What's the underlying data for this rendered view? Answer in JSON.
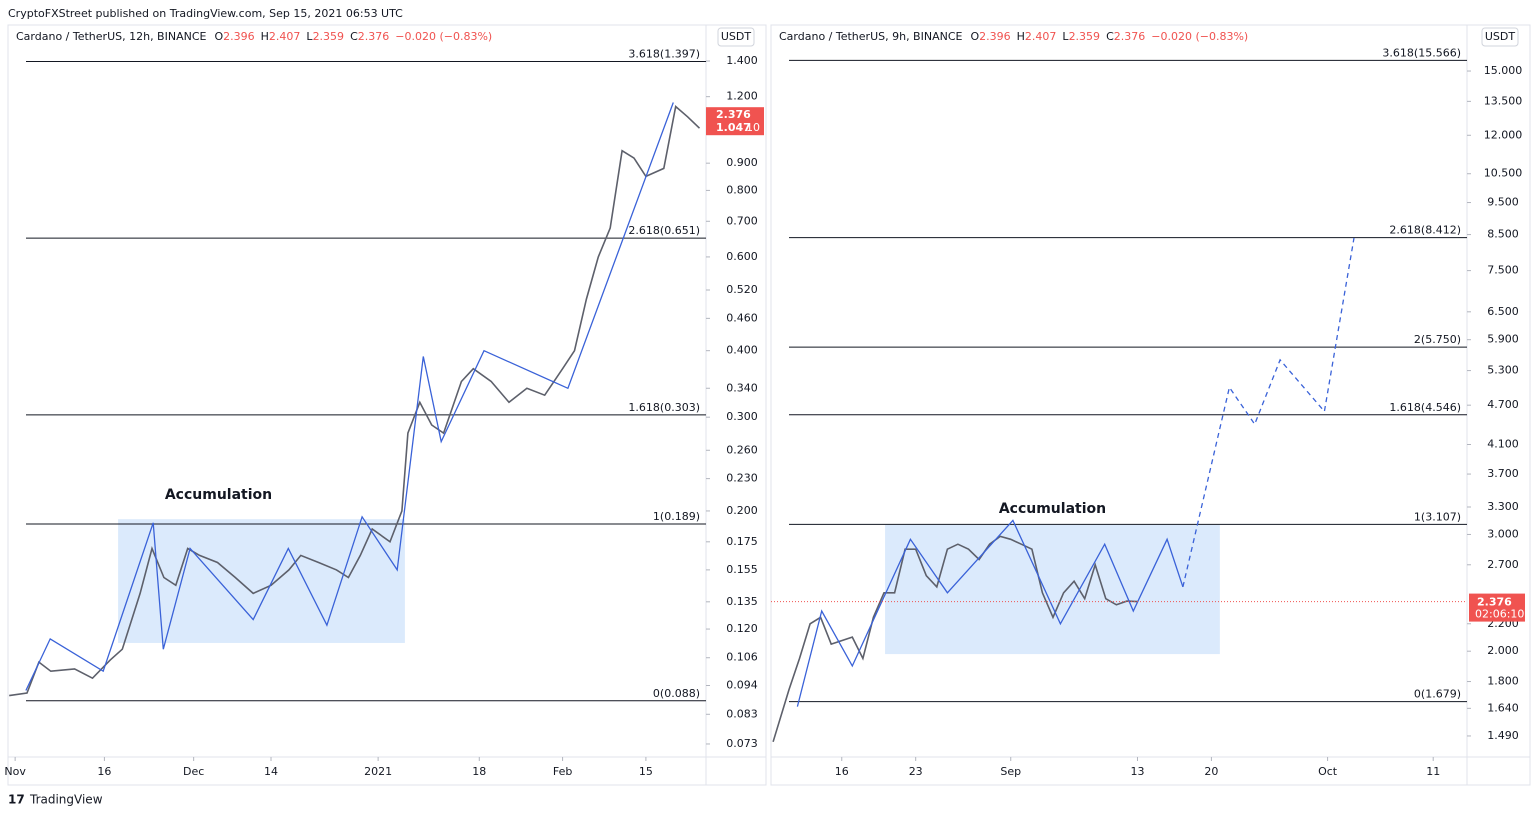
{
  "header": {
    "published": "CryptoFXStreet published on TradingView.com, Sep 15, 2021 06:53 UTC"
  },
  "footer": {
    "brand": "TradingView"
  },
  "chart_data": [
    {
      "type": "line",
      "title": "Cardano / TetherUS, 12h, BINANCE",
      "ohlc": [
        {
          "key": "O",
          "value": 2.396
        },
        {
          "key": "H",
          "value": 2.407
        },
        {
          "key": "L",
          "value": 2.359
        },
        {
          "key": "C",
          "value": 2.376
        }
      ],
      "change": "−0.020 (−0.83%)",
      "currency": "USDT",
      "log_scale": true,
      "color": "#5d606b",
      "x": [
        -1,
        2,
        4,
        6,
        10,
        13,
        16,
        18,
        21,
        23,
        25,
        27,
        29,
        31,
        34,
        37,
        40,
        43,
        46,
        48,
        51,
        54,
        56,
        58,
        60,
        63,
        65,
        66,
        68,
        70,
        72,
        75,
        77,
        80,
        83,
        86,
        89,
        92,
        94,
        96,
        98,
        100,
        102,
        104,
        106,
        109,
        111,
        113,
        115
      ],
      "values": [
        0.09,
        0.091,
        0.104,
        0.1,
        0.101,
        0.097,
        0.105,
        0.11,
        0.14,
        0.17,
        0.15,
        0.145,
        0.17,
        0.165,
        0.16,
        0.15,
        0.14,
        0.145,
        0.155,
        0.165,
        0.16,
        0.155,
        0.15,
        0.165,
        0.185,
        0.175,
        0.2,
        0.28,
        0.32,
        0.29,
        0.28,
        0.35,
        0.37,
        0.35,
        0.32,
        0.34,
        0.33,
        0.37,
        0.4,
        0.5,
        0.6,
        0.68,
        0.95,
        0.92,
        0.85,
        0.88,
        1.15,
        1.1,
        1.047
      ],
      "waves": [
        {
          "color": "#3a62d8",
          "dashed": false,
          "x": [
            1.8,
            5.9,
            14.8,
            23.2,
            24.9,
            29.4,
            40,
            45.9,
            52.4,
            58.3,
            64.2,
            68.6,
            71.6,
            78.8,
            92.9,
            110.6
          ],
          "values": [
            0.092,
            0.115,
            0.1,
            0.19,
            0.11,
            0.17,
            0.125,
            0.17,
            0.122,
            0.195,
            0.155,
            0.39,
            0.27,
            0.4,
            0.34,
            1.17
          ]
        }
      ],
      "levels": [
        {
          "label": "3.618(1.397)",
          "value": 1.397
        },
        {
          "label": "2.618(0.651)",
          "value": 0.651
        },
        {
          "label": "1.618(0.303)",
          "value": 0.303
        },
        {
          "label": "1(0.189)",
          "value": 0.189
        },
        {
          "label": "0(0.088)",
          "value": 0.088
        }
      ],
      "box": {
        "text": "Accumulation",
        "x": [
          17.3,
          65.5
        ],
        "values": [
          0.193,
          0.113
        ],
        "color": "#dbeafc"
      },
      "price_tag": {
        "price": 2.376,
        "secondary": 1.047,
        "timer": "10",
        "color": "#f05350"
      },
      "xlim": [
        -1.2,
        116.1
      ],
      "ylim": [
        0.069,
        1.636
      ],
      "xticks": [
        {
          "value": 0,
          "label": "Nov"
        },
        {
          "value": 15,
          "label": "16"
        },
        {
          "value": 30,
          "label": "Dec"
        },
        {
          "value": 43,
          "label": "14"
        },
        {
          "value": 61,
          "label": "2021"
        },
        {
          "value": 78,
          "label": "18"
        },
        {
          "value": 92,
          "label": "Feb"
        },
        {
          "value": 106,
          "label": "15"
        }
      ],
      "yticks": [
        {
          "value": 1.4,
          "label": "1.400"
        },
        {
          "value": 1.2,
          "label": "1.200"
        },
        {
          "value": 0.9,
          "label": "0.900"
        },
        {
          "value": 0.8,
          "label": "0.800"
        },
        {
          "value": 0.7,
          "label": "0.700"
        },
        {
          "value": 0.6,
          "label": "0.600"
        },
        {
          "value": 0.52,
          "label": "0.520"
        },
        {
          "value": 0.46,
          "label": "0.460"
        },
        {
          "value": 0.4,
          "label": "0.400"
        },
        {
          "value": 0.34,
          "label": "0.340"
        },
        {
          "value": 0.3,
          "label": "0.300"
        },
        {
          "value": 0.26,
          "label": "0.260"
        },
        {
          "value": 0.23,
          "label": "0.230"
        },
        {
          "value": 0.2,
          "label": "0.200"
        },
        0.175,
        0.155,
        0.135,
        {
          "value": 0.12,
          "label": "0.120"
        },
        0.106,
        0.094,
        0.083,
        0.073
      ]
    },
    {
      "type": "line",
      "title": "Cardano / TetherUS, 9h, BINANCE",
      "ohlc": [
        {
          "key": "O",
          "value": 2.396
        },
        {
          "key": "H",
          "value": 2.407
        },
        {
          "key": "L",
          "value": 2.359
        },
        {
          "key": "C",
          "value": 2.376
        }
      ],
      "change": "−0.020 (−0.83%)",
      "currency": "USDT",
      "log_scale": true,
      "color": "#5d606b",
      "x": [
        9.5,
        11,
        12,
        13,
        14,
        15,
        17,
        18,
        19,
        20,
        21,
        22,
        23,
        24,
        25,
        26,
        27,
        28,
        29,
        30,
        31,
        32,
        33,
        34,
        35,
        36,
        37,
        38,
        39,
        40,
        41,
        42,
        43,
        44
      ],
      "values": [
        1.46,
        1.75,
        1.95,
        2.2,
        2.25,
        2.05,
        2.1,
        1.95,
        2.25,
        2.45,
        2.45,
        2.85,
        2.85,
        2.6,
        2.5,
        2.85,
        2.9,
        2.85,
        2.75,
        2.9,
        2.98,
        2.95,
        2.9,
        2.85,
        2.45,
        2.25,
        2.45,
        2.55,
        2.4,
        2.7,
        2.4,
        2.35,
        2.38,
        2.376
      ],
      "waves": [
        {
          "color": "#3a62d8",
          "dashed": false,
          "x": [
            11.8,
            14.1,
            17,
            22.5,
            26,
            32.2,
            36.7,
            40.9,
            43.6,
            46.8,
            48.3
          ],
          "values": [
            1.65,
            2.3,
            1.9,
            2.95,
            2.45,
            3.15,
            2.2,
            2.9,
            2.3,
            2.95,
            2.5
          ]
        },
        {
          "color": "#3a62d8",
          "dashed": true,
          "x": [
            48.3,
            52.7,
            55.1,
            57.5,
            61.7,
            64.5
          ],
          "values": [
            2.5,
            5.0,
            4.4,
            5.5,
            4.6,
            8.4
          ]
        }
      ],
      "levels": [
        {
          "label": "3.618(15.566)",
          "value": 15.566
        },
        {
          "label": "2.618(8.412)",
          "value": 8.412
        },
        {
          "label": "2(5.750)",
          "value": 5.75
        },
        {
          "label": "1.618(4.546)",
          "value": 4.546
        },
        {
          "label": "1(3.107)",
          "value": 3.107
        },
        {
          "label": "0(1.679)",
          "value": 1.679
        }
      ],
      "box": {
        "text": "Accumulation",
        "x": [
          20.1,
          51.8
        ],
        "values": [
          3.1,
          1.98
        ],
        "color": "#dbeafc"
      },
      "price_tag": {
        "price": 2.376,
        "timer": "02:06:10",
        "color": "#f05350"
      },
      "xlim": [
        9.3,
        75.2
      ],
      "ylim": [
        1.385,
        17.6
      ],
      "xticks": [
        {
          "value": 16,
          "label": "16"
        },
        {
          "value": 23,
          "label": "23"
        },
        {
          "value": 32,
          "label": "Sep"
        },
        {
          "value": 44,
          "label": "13"
        },
        {
          "value": 51,
          "label": "20"
        },
        {
          "value": 62,
          "label": "Oct"
        },
        {
          "value": 72,
          "label": "11"
        }
      ],
      "yticks": [
        {
          "value": 15,
          "label": "15.000"
        },
        {
          "value": 13.5,
          "label": "13.500"
        },
        {
          "value": 12,
          "label": "12.000"
        },
        {
          "value": 10.5,
          "label": "10.500"
        },
        {
          "value": 9.5,
          "label": "9.500"
        },
        {
          "value": 8.5,
          "label": "8.500"
        },
        {
          "value": 7.5,
          "label": "7.500"
        },
        {
          "value": 6.5,
          "label": "6.500"
        },
        {
          "value": 5.9,
          "label": "5.900"
        },
        {
          "value": 5.3,
          "label": "5.300"
        },
        {
          "value": 4.7,
          "label": "4.700"
        },
        {
          "value": 4.1,
          "label": "4.100"
        },
        {
          "value": 3.7,
          "label": "3.700"
        },
        {
          "value": 3.3,
          "label": "3.300"
        },
        {
          "value": 3,
          "label": "3.000"
        },
        {
          "value": 2.7,
          "label": "2.700"
        },
        {
          "value": 2.2,
          "label": "2.200"
        },
        {
          "value": 2,
          "label": "2.000"
        },
        {
          "value": 1.8,
          "label": "1.800"
        },
        {
          "value": 1.64,
          "label": "1.640"
        },
        {
          "value": 1.49,
          "label": "1.490"
        }
      ]
    }
  ]
}
